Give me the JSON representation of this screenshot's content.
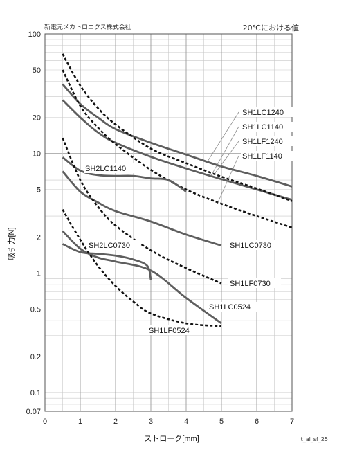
{
  "header": {
    "company": "新電元メカトロニクス株式会社",
    "condition": "20℃における値"
  },
  "footer_code": "lt_al_sf_25",
  "chart_data": {
    "type": "line",
    "xlabel": "ストローク[mm]",
    "ylabel": "吸引力[N]",
    "xlim": [
      0,
      7
    ],
    "ylim": [
      0.07,
      100
    ],
    "y_scale": "log",
    "grid": true,
    "x_ticks": [
      "0",
      "1",
      "2",
      "3",
      "4",
      "5",
      "6",
      "7"
    ],
    "y_ticks": [
      {
        "v": 100,
        "t": "100"
      },
      {
        "v": 50,
        "t": "50"
      },
      {
        "v": 20,
        "t": "20"
      },
      {
        "v": 10,
        "t": "10"
      },
      {
        "v": 5,
        "t": "5"
      },
      {
        "v": 2,
        "t": "2"
      },
      {
        "v": 1,
        "t": "1"
      },
      {
        "v": 0.5,
        "t": "0.5"
      },
      {
        "v": 0.2,
        "t": "0.2"
      },
      {
        "v": 0.1,
        "t": "0.1"
      },
      {
        "v": 0.07,
        "t": "0.07"
      }
    ],
    "series": [
      {
        "name": "SH1LC1240",
        "style": "solid",
        "x": [
          0.5,
          1,
          1.5,
          2,
          3,
          4,
          5,
          6,
          7
        ],
        "y": [
          38,
          26,
          20,
          16,
          12.3,
          9.8,
          7.8,
          6.5,
          5.3
        ]
      },
      {
        "name": "SH1LC1140",
        "style": "solid",
        "x": [
          0.5,
          1,
          1.5,
          2,
          3,
          4,
          5,
          6,
          7
        ],
        "y": [
          28,
          20,
          15,
          12.3,
          9.4,
          7.5,
          6.1,
          5,
          4.1
        ]
      },
      {
        "name": "SH1LF1240",
        "style": "dashed",
        "x": [
          0.5,
          1,
          1.5,
          2,
          3,
          4,
          5,
          6,
          7
        ],
        "y": [
          68,
          37,
          24,
          17.5,
          11,
          8.3,
          6.4,
          5.1,
          4
        ]
      },
      {
        "name": "SH1LF1140",
        "style": "dashed",
        "x": [
          0.5,
          1,
          1.5,
          2,
          3,
          4,
          5,
          6,
          7
        ],
        "y": [
          50,
          25,
          16.5,
          12,
          7.3,
          5,
          3.8,
          3,
          2.4
        ]
      },
      {
        "name": "SH2LC1140",
        "style": "solid",
        "x": [
          0.5,
          1,
          1.5,
          2,
          2.5,
          3,
          3.5,
          4
        ],
        "y": [
          9.3,
          7.2,
          6.6,
          6.5,
          6.5,
          6.2,
          6,
          4.8
        ]
      },
      {
        "name": "SH1LC0730",
        "style": "solid",
        "x": [
          0.5,
          1,
          1.5,
          2,
          3,
          4,
          5
        ],
        "y": [
          7.1,
          4.8,
          3.9,
          3.3,
          2.7,
          2.1,
          1.7
        ]
      },
      {
        "name": "SH1LF0730",
        "style": "dashed",
        "x": [
          0.5,
          1,
          1.5,
          2,
          3,
          4,
          5
        ],
        "y": [
          13.5,
          6,
          3.6,
          2.5,
          1.55,
          1.1,
          0.82
        ]
      },
      {
        "name": "SH2LC0730",
        "style": "solid",
        "x": [
          0.5,
          1,
          1.5,
          2,
          2.5,
          2.9,
          3
        ],
        "y": [
          1.75,
          1.5,
          1.45,
          1.4,
          1.3,
          1.15,
          0.88
        ]
      },
      {
        "name": "SH1LC0524",
        "style": "solid",
        "x": [
          0.5,
          1,
          1.5,
          2,
          3,
          4,
          5
        ],
        "y": [
          2.25,
          1.6,
          1.35,
          1.25,
          1.05,
          0.62,
          0.38
        ]
      },
      {
        "name": "SH1LF0524",
        "style": "dashed",
        "x": [
          0.5,
          1,
          1.5,
          2,
          2.5,
          3,
          4,
          5
        ],
        "y": [
          3.4,
          1.9,
          1.15,
          0.78,
          0.58,
          0.46,
          0.38,
          0.36
        ]
      }
    ]
  }
}
